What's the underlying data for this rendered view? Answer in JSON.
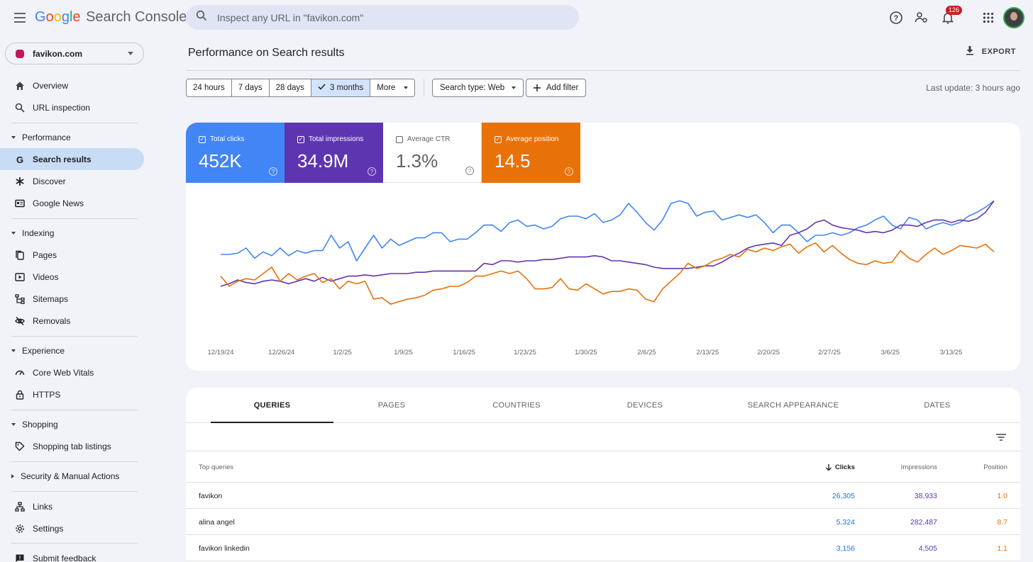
{
  "app": {
    "logo_letters": [
      "G",
      "o",
      "o",
      "g",
      "l",
      "e"
    ],
    "product": "Search Console"
  },
  "search": {
    "placeholder": "Inspect any URL in \"favikon.com\""
  },
  "header": {
    "notifications_count": "126"
  },
  "property": {
    "name": "favikon.com"
  },
  "sidebar": {
    "overview": "Overview",
    "url_inspection": "URL inspection",
    "performance": {
      "label": "Performance",
      "items": [
        "Search results",
        "Discover",
        "Google News"
      ]
    },
    "indexing": {
      "label": "Indexing",
      "items": [
        "Pages",
        "Videos",
        "Sitemaps",
        "Removals"
      ]
    },
    "experience": {
      "label": "Experience",
      "items": [
        "Core Web Vitals",
        "HTTPS"
      ]
    },
    "shopping": {
      "label": "Shopping",
      "items": [
        "Shopping tab listings"
      ]
    },
    "security": {
      "label": "Security & Manual Actions"
    },
    "links": "Links",
    "settings": "Settings",
    "feedback": "Submit feedback"
  },
  "main": {
    "title": "Performance on Search results",
    "export_label": "EXPORT",
    "last_update": "Last update: 3 hours ago"
  },
  "filters": {
    "ranges": [
      "24 hours",
      "7 days",
      "28 days",
      "3 months",
      "More"
    ],
    "selected_range": "3 months",
    "search_type": "Search type: Web",
    "add_filter": "Add filter"
  },
  "metrics": {
    "clicks": {
      "label": "Total clicks",
      "value": "452K",
      "checked": true
    },
    "impressions": {
      "label": "Total impressions",
      "value": "34.9M",
      "checked": true
    },
    "ctr": {
      "label": "Average CTR",
      "value": "1.3%",
      "checked": false
    },
    "position": {
      "label": "Average position",
      "value": "14.5",
      "checked": true
    }
  },
  "colors": {
    "clicks": "#4285f4",
    "impressions": "#5e35b1",
    "position": "#e8710a",
    "active_nav": "#c8dcf5"
  },
  "chart_data": {
    "type": "line",
    "x_tick_labels": [
      "12/19/24",
      "12/26/24",
      "1/2/25",
      "1/9/25",
      "1/16/25",
      "1/23/25",
      "1/30/25",
      "2/6/25",
      "2/13/25",
      "2/20/25",
      "2/27/25",
      "3/6/25",
      "3/13/25"
    ],
    "days": 92,
    "y_axis_visible": false,
    "grid": false,
    "series": [
      {
        "name": "Total clicks",
        "color": "#4285f4",
        "values": [
          0.45,
          0.45,
          0.44,
          0.4,
          0.48,
          0.43,
          0.46,
          0.4,
          0.46,
          0.42,
          0.44,
          0.42,
          0.42,
          0.3,
          0.4,
          0.35,
          0.5,
          0.4,
          0.3,
          0.4,
          0.33,
          0.38,
          0.35,
          0.32,
          0.32,
          0.28,
          0.28,
          0.35,
          0.33,
          0.33,
          0.28,
          0.22,
          0.22,
          0.27,
          0.2,
          0.18,
          0.23,
          0.22,
          0.25,
          0.23,
          0.17,
          0.15,
          0.15,
          0.17,
          0.13,
          0.2,
          0.18,
          0.14,
          0.05,
          0.12,
          0.2,
          0.26,
          0.18,
          0.05,
          0.03,
          0.05,
          0.15,
          0.12,
          0.11,
          0.18,
          0.16,
          0.14,
          0.16,
          0.14,
          0.2,
          0.28,
          0.22,
          0.22,
          0.28,
          0.35,
          0.3,
          0.3,
          0.28,
          0.3,
          0.28,
          0.24,
          0.22,
          0.18,
          0.15,
          0.22,
          0.25,
          0.16,
          0.18,
          0.25,
          0.22,
          0.2,
          0.22,
          0.2,
          0.15,
          0.12,
          0.08,
          0.03
        ]
      },
      {
        "name": "Total impressions",
        "color": "#5e35b1",
        "values": [
          0.7,
          0.68,
          0.65,
          0.67,
          0.68,
          0.66,
          0.65,
          0.66,
          0.68,
          0.66,
          0.64,
          0.66,
          0.63,
          0.66,
          0.64,
          0.62,
          0.62,
          0.61,
          0.62,
          0.61,
          0.6,
          0.6,
          0.6,
          0.59,
          0.59,
          0.58,
          0.58,
          0.58,
          0.58,
          0.58,
          0.58,
          0.52,
          0.53,
          0.5,
          0.5,
          0.51,
          0.5,
          0.5,
          0.49,
          0.49,
          0.48,
          0.47,
          0.47,
          0.47,
          0.46,
          0.47,
          0.5,
          0.5,
          0.51,
          0.52,
          0.53,
          0.55,
          0.56,
          0.56,
          0.56,
          0.56,
          0.55,
          0.54,
          0.54,
          0.51,
          0.47,
          0.44,
          0.4,
          0.38,
          0.37,
          0.36,
          0.38,
          0.3,
          0.28,
          0.25,
          0.2,
          0.18,
          0.22,
          0.24,
          0.25,
          0.26,
          0.28,
          0.27,
          0.28,
          0.26,
          0.22,
          0.22,
          0.23,
          0.2,
          0.18,
          0.18,
          0.2,
          0.18,
          0.19,
          0.17,
          0.12,
          0.03
        ]
      },
      {
        "name": "Average position",
        "color": "#e8710a",
        "values": [
          0.62,
          0.7,
          0.66,
          0.64,
          0.65,
          0.6,
          0.55,
          0.66,
          0.6,
          0.65,
          0.62,
          0.6,
          0.67,
          0.64,
          0.72,
          0.66,
          0.68,
          0.66,
          0.8,
          0.79,
          0.84,
          0.82,
          0.8,
          0.79,
          0.77,
          0.73,
          0.72,
          0.7,
          0.7,
          0.67,
          0.62,
          0.62,
          0.6,
          0.58,
          0.6,
          0.58,
          0.64,
          0.72,
          0.72,
          0.71,
          0.64,
          0.72,
          0.73,
          0.68,
          0.72,
          0.76,
          0.74,
          0.74,
          0.72,
          0.73,
          0.8,
          0.82,
          0.72,
          0.66,
          0.6,
          0.52,
          0.56,
          0.54,
          0.5,
          0.48,
          0.45,
          0.47,
          0.41,
          0.43,
          0.4,
          0.42,
          0.39,
          0.37,
          0.44,
          0.39,
          0.36,
          0.43,
          0.38,
          0.44,
          0.49,
          0.52,
          0.53,
          0.5,
          0.52,
          0.51,
          0.42,
          0.48,
          0.51,
          0.45,
          0.4,
          0.45,
          0.42,
          0.38,
          0.39,
          0.4,
          0.37,
          0.43
        ]
      }
    ]
  },
  "table": {
    "tabs": [
      "QUERIES",
      "PAGES",
      "COUNTRIES",
      "DEVICES",
      "SEARCH APPEARANCE",
      "DATES"
    ],
    "columns": {
      "query": "Top queries",
      "clicks": "Clicks",
      "impressions": "Impressions",
      "position": "Position"
    },
    "rows": [
      {
        "query": "favikon",
        "clicks": "26,305",
        "impressions": "38,933",
        "position": "1.0"
      },
      {
        "query": "alina angel",
        "clicks": "5,324",
        "impressions": "282,487",
        "position": "8.7"
      },
      {
        "query": "favikon linkedin",
        "clicks": "3,156",
        "impressions": "4,505",
        "position": "1.1"
      }
    ]
  }
}
